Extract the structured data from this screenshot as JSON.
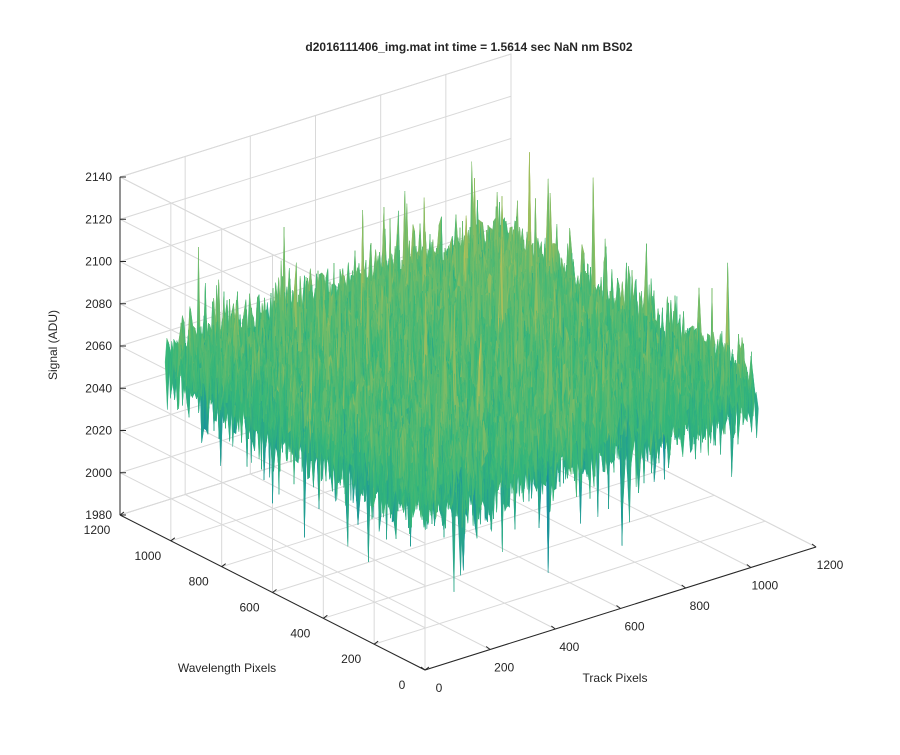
{
  "chart_data": {
    "type": "surface",
    "title": "d2016111406_img.mat int time = 1.5614 sec  NaN nm BS02",
    "xlabel": "Track Pixels",
    "ylabel": "Wavelength Pixels",
    "zlabel": "Signal (ADU)",
    "xlim": [
      0,
      1200
    ],
    "ylim": [
      0,
      1200
    ],
    "zlim": [
      1980,
      2140
    ],
    "xticks": [
      0,
      200,
      400,
      600,
      800,
      1000,
      1200
    ],
    "yticks": [
      0,
      200,
      400,
      600,
      800,
      1000,
      1200
    ],
    "zticks": [
      1980,
      2000,
      2020,
      2040,
      2060,
      2080,
      2100,
      2120,
      2140
    ],
    "data_extent": {
      "x": [
        1,
        1024
      ],
      "y": [
        1,
        1024
      ]
    },
    "mean_signal": 2062,
    "signal_range": [
      1980,
      2140
    ],
    "grid": true,
    "colormap": "parula",
    "colors": {
      "low": "#0072bd",
      "mid": "#35b779",
      "high": "#ecc34a"
    }
  }
}
